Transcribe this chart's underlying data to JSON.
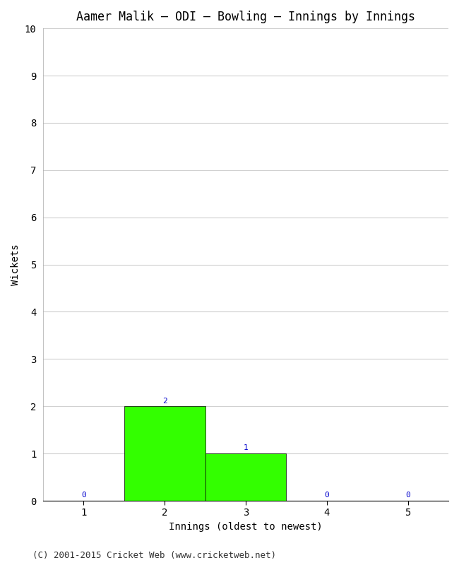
{
  "title": "Aamer Malik – ODI – Bowling – Innings by Innings",
  "xlabel": "Innings (oldest to newest)",
  "ylabel": "Wickets",
  "categories": [
    1,
    2,
    3,
    4,
    5
  ],
  "values": [
    0,
    2,
    1,
    0,
    0
  ],
  "bar_color": "#33ff00",
  "bar_edge_color": "#000000",
  "ylim": [
    0,
    10
  ],
  "xlim": [
    0.5,
    5.5
  ],
  "yticks": [
    0,
    1,
    2,
    3,
    4,
    5,
    6,
    7,
    8,
    9,
    10
  ],
  "xticks": [
    1,
    2,
    3,
    4,
    5
  ],
  "label_color": "#0000cc",
  "label_fontsize": 8,
  "title_fontsize": 12,
  "axis_label_fontsize": 10,
  "tick_fontsize": 10,
  "background_color": "#ffffff",
  "grid_color": "#d0d0d0",
  "footer_text": "(C) 2001-2015 Cricket Web (www.cricketweb.net)",
  "footer_fontsize": 9
}
